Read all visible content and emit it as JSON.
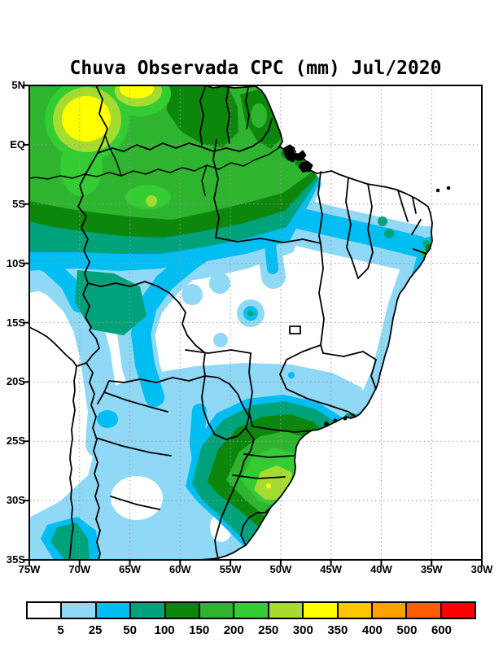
{
  "title": "Chuva Observada CPC (mm) Jul/2020",
  "map": {
    "y_axis": {
      "labels": [
        "5N",
        "EQ",
        "5S",
        "10S",
        "15S",
        "20S",
        "25S",
        "30S",
        "35S"
      ]
    },
    "x_axis": {
      "labels": [
        "75W",
        "70W",
        "65W",
        "60W",
        "55W",
        "50W",
        "45W",
        "40W",
        "35W",
        "30W"
      ]
    },
    "gridline_interval_deg": 5
  },
  "colorbar": {
    "tick_labels": [
      "5",
      "25",
      "50",
      "100",
      "150",
      "200",
      "250",
      "300",
      "350",
      "400",
      "500",
      "600"
    ],
    "colors": [
      "#FFFFFF",
      "#8FD8F6",
      "#00BDF2",
      "#00A27B",
      "#0C870C",
      "#2EB42E",
      "#33CC33",
      "#A6DB30",
      "#FFFF00",
      "#FFC600",
      "#FFA000",
      "#FF5E00",
      "#FA0000"
    ]
  },
  "chart_data": {
    "type": "contour_map",
    "title": "Chuva Observada CPC (mm) Jul/2020",
    "variable": "observed monthly precipitation (CPC)",
    "unit": "mm",
    "month": "Jul/2020",
    "lat_range": [
      "5N",
      "35S"
    ],
    "lon_range": [
      "75W",
      "30W"
    ],
    "contour_levels_mm": [
      5,
      25,
      50,
      100,
      150,
      200,
      250,
      300,
      350,
      400,
      500,
      600
    ],
    "palette": [
      "#FFFFFF",
      "#8FD8F6",
      "#00BDF2",
      "#00A27B",
      "#0C870C",
      "#2EB42E",
      "#33CC33",
      "#A6DB30",
      "#FFFF00",
      "#FFC600",
      "#FFA000",
      "#FF5E00",
      "#FA0000"
    ],
    "features": [
      "Yellow maxima of 300-350 mm over the far northwestern Amazon near 2N-4N, 68W-72W and near 1N-3N, 63W-65W",
      "Broad 150-250 mm green band across the Amazon and the Guianas north of about 7S",
      "Light blue 5-50 mm belt along the north coast and lower Amazon toward the northeast coast",
      "Mostly under 5 mm (white) over interior central and northeastern Brazil between about 8S and 25S, with scattered 5-25 mm pockets",
      "Narrow 25-150 mm band hugging the east coast from about 7S to 23S",
      "250-350 mm maximum with a small yellow core over southern Brazil near 29S-30S, 51W-53W, ringed by 5-150 mm shading",
      "5-100 mm band along the Andes and central Chile coast near 33S-35S"
    ],
    "legend_position": "bottom",
    "grid": "5-degree dotted graticule"
  }
}
